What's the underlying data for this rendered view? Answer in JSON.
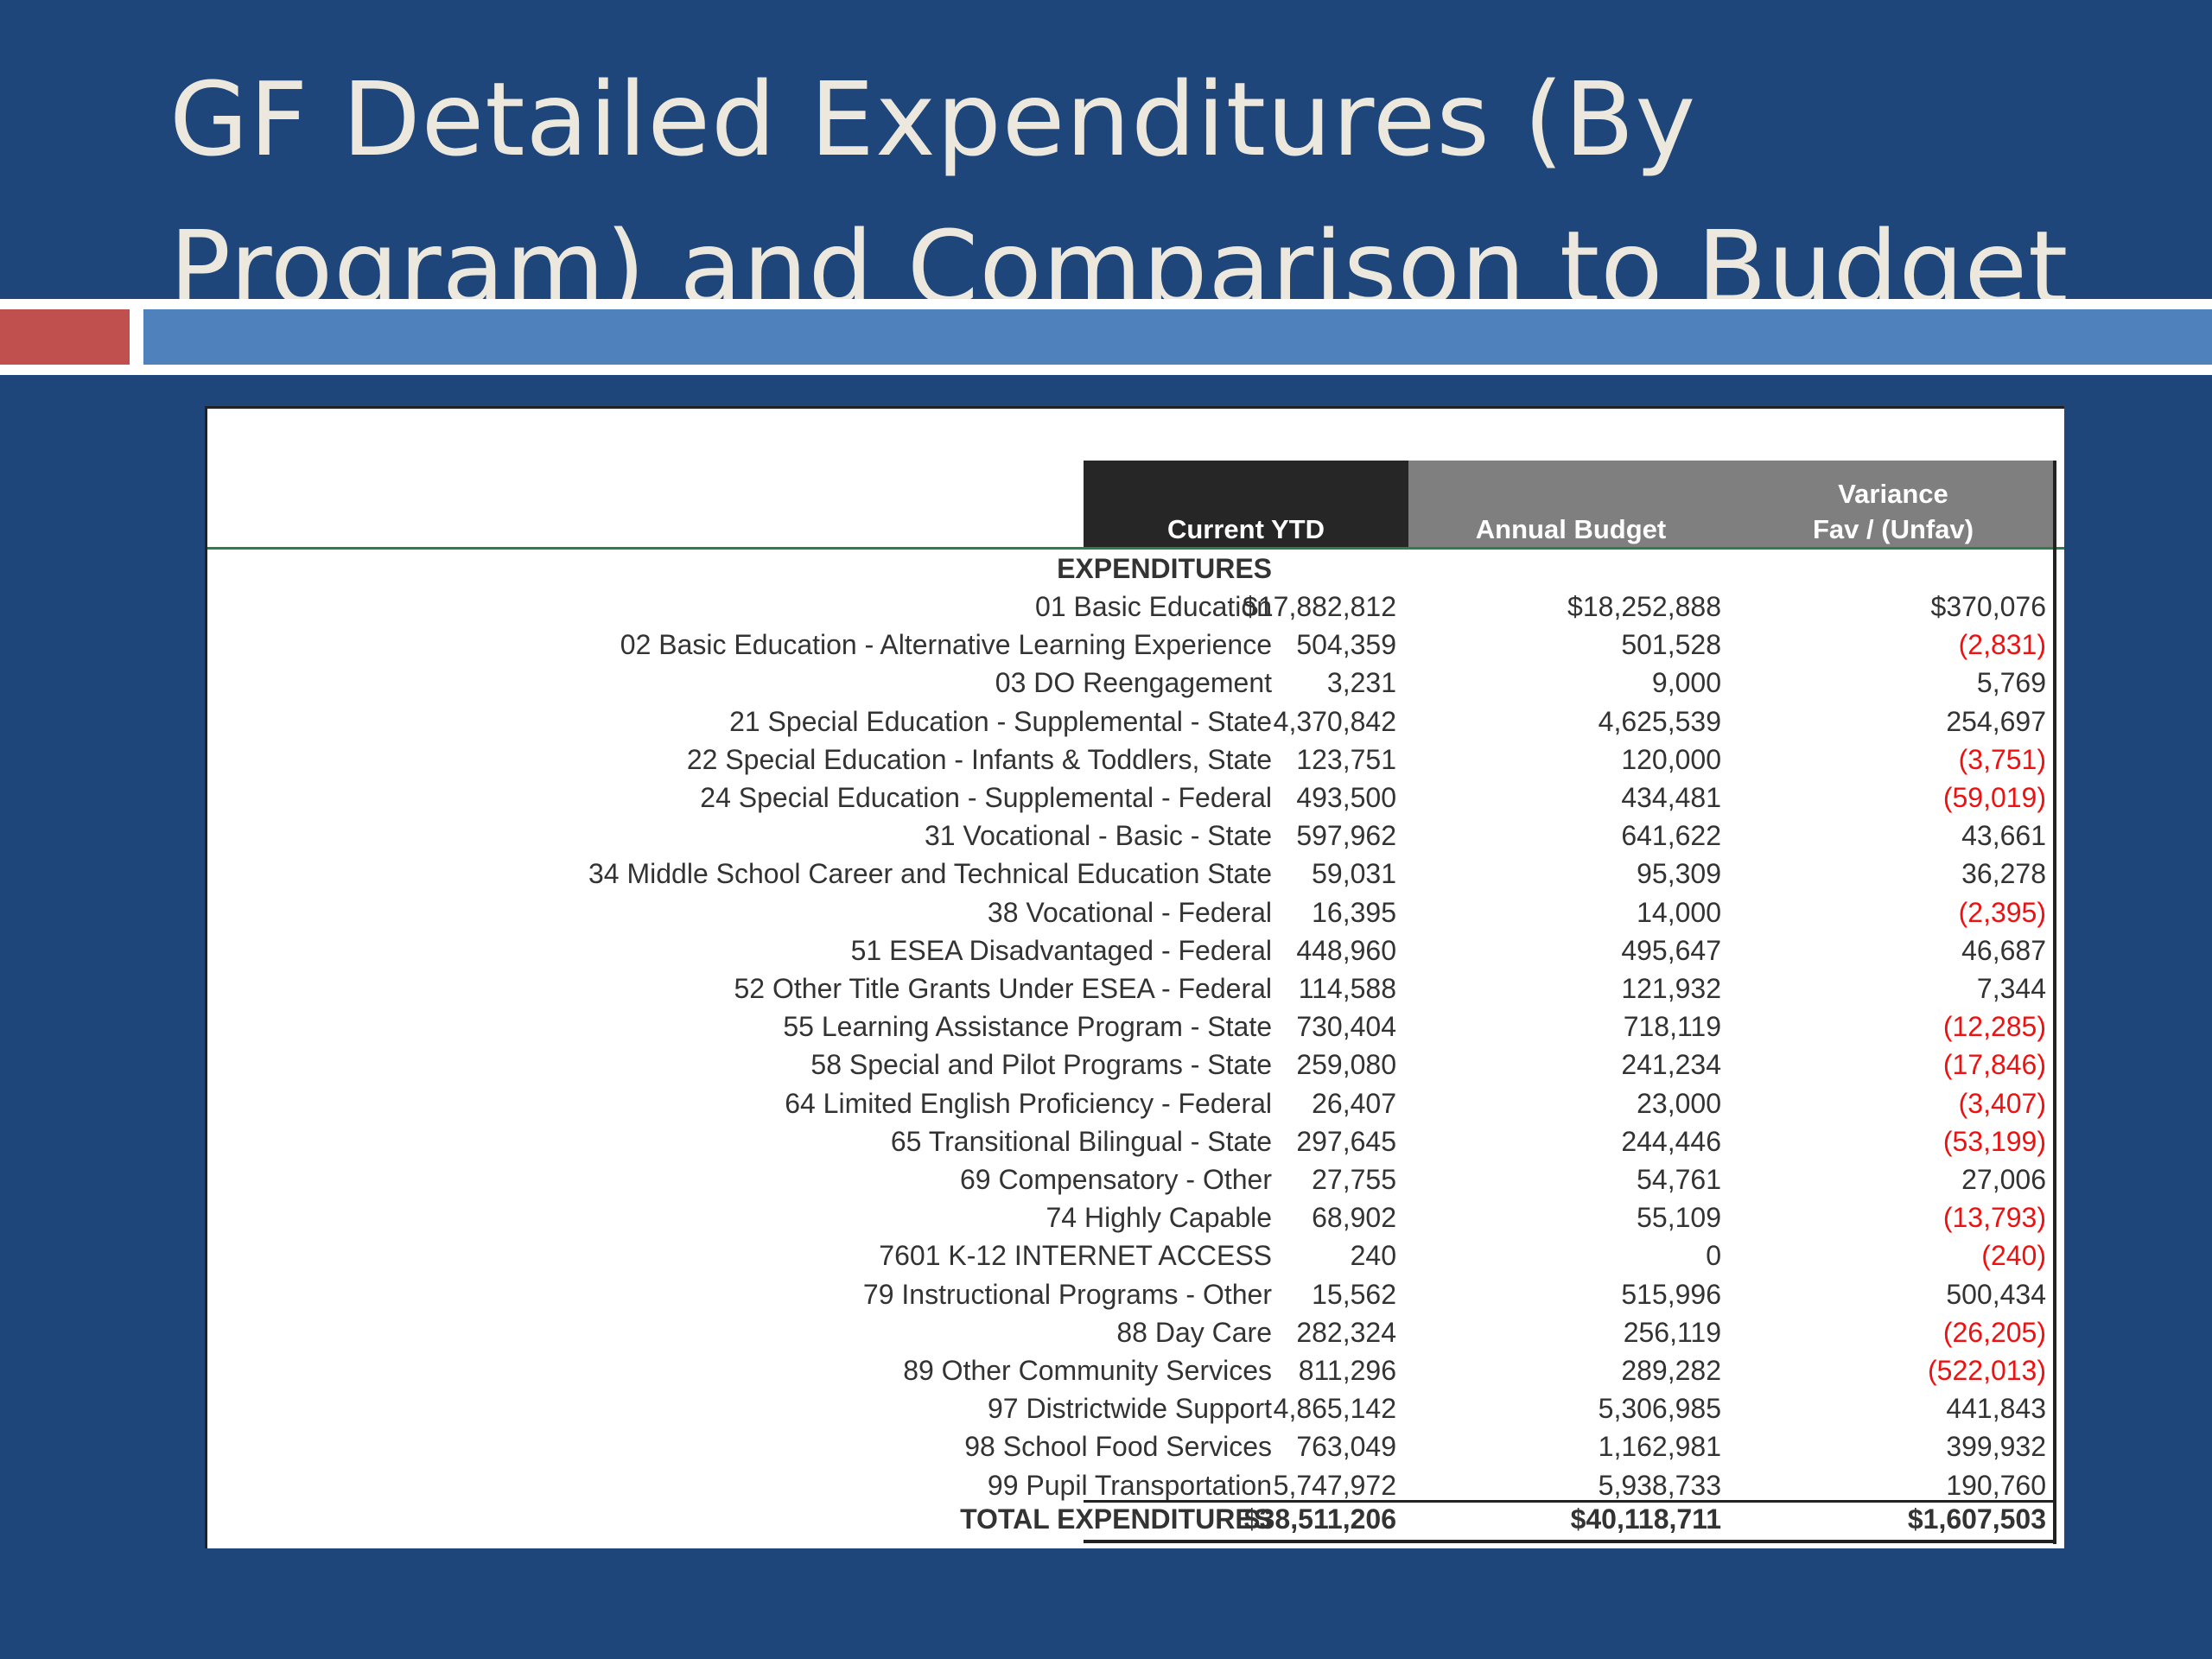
{
  "slide": {
    "title_line1": "GF Detailed Expenditures (By",
    "title_line2": "Program) and Comparison to Budget"
  },
  "colors": {
    "background": "#1f467a",
    "accent_red": "#c0504d",
    "accent_blue": "#4f81bd",
    "negative": "#ee1111"
  },
  "table": {
    "headers": {
      "current_ytd": "Current YTD",
      "annual_budget": "Annual Budget",
      "variance_line1": "Variance",
      "variance_line2": "Fav / (Unfav)"
    },
    "section_label": "EXPENDITURES",
    "rows": [
      {
        "label": "01 Basic Education",
        "ytd": "$17,882,812",
        "budget": "$18,252,888",
        "variance": "$370,076",
        "negative": false
      },
      {
        "label": "02 Basic Education - Alternative Learning Experience",
        "ytd": "504,359",
        "budget": "501,528",
        "variance": "(2,831)",
        "negative": true
      },
      {
        "label": "03 DO Reengagement",
        "ytd": "3,231",
        "budget": "9,000",
        "variance": "5,769",
        "negative": false
      },
      {
        "label": "21 Special Education - Supplemental - State",
        "ytd": "4,370,842",
        "budget": "4,625,539",
        "variance": "254,697",
        "negative": false
      },
      {
        "label": "22 Special Education - Infants & Toddlers, State",
        "ytd": "123,751",
        "budget": "120,000",
        "variance": "(3,751)",
        "negative": true
      },
      {
        "label": "24 Special Education - Supplemental - Federal",
        "ytd": "493,500",
        "budget": "434,481",
        "variance": "(59,019)",
        "negative": true
      },
      {
        "label": "31 Vocational - Basic - State",
        "ytd": "597,962",
        "budget": "641,622",
        "variance": "43,661",
        "negative": false
      },
      {
        "label": "34 Middle School Career and Technical Education State",
        "ytd": "59,031",
        "budget": "95,309",
        "variance": "36,278",
        "negative": false
      },
      {
        "label": "38 Vocational - Federal",
        "ytd": "16,395",
        "budget": "14,000",
        "variance": "(2,395)",
        "negative": true
      },
      {
        "label": "51 ESEA Disadvantaged - Federal",
        "ytd": "448,960",
        "budget": "495,647",
        "variance": "46,687",
        "negative": false
      },
      {
        "label": "52 Other Title Grants Under ESEA - Federal",
        "ytd": "114,588",
        "budget": "121,932",
        "variance": "7,344",
        "negative": false
      },
      {
        "label": "55 Learning Assistance Program - State",
        "ytd": "730,404",
        "budget": "718,119",
        "variance": "(12,285)",
        "negative": true
      },
      {
        "label": "58 Special and Pilot Programs - State",
        "ytd": "259,080",
        "budget": "241,234",
        "variance": "(17,846)",
        "negative": true
      },
      {
        "label": "64 Limited English Proficiency - Federal",
        "ytd": "26,407",
        "budget": "23,000",
        "variance": "(3,407)",
        "negative": true
      },
      {
        "label": "65 Transitional Bilingual - State",
        "ytd": "297,645",
        "budget": "244,446",
        "variance": "(53,199)",
        "negative": true
      },
      {
        "label": "69 Compensatory - Other",
        "ytd": "27,755",
        "budget": "54,761",
        "variance": "27,006",
        "negative": false
      },
      {
        "label": "74 Highly Capable",
        "ytd": "68,902",
        "budget": "55,109",
        "variance": "(13,793)",
        "negative": true
      },
      {
        "label": "7601 K-12 INTERNET ACCESS",
        "ytd": "240",
        "budget": "0",
        "variance": "(240)",
        "negative": true
      },
      {
        "label": "79 Instructional Programs - Other",
        "ytd": "15,562",
        "budget": "515,996",
        "variance": "500,434",
        "negative": false
      },
      {
        "label": "88 Day Care",
        "ytd": "282,324",
        "budget": "256,119",
        "variance": "(26,205)",
        "negative": true
      },
      {
        "label": "89 Other Community Services",
        "ytd": "811,296",
        "budget": "289,282",
        "variance": "(522,013)",
        "negative": true
      },
      {
        "label": "97 Districtwide Support",
        "ytd": "4,865,142",
        "budget": "5,306,985",
        "variance": "441,843",
        "negative": false
      },
      {
        "label": "98 School Food Services",
        "ytd": "763,049",
        "budget": "1,162,981",
        "variance": "399,932",
        "negative": false
      },
      {
        "label": "99 Pupil Transportation",
        "ytd": "5,747,972",
        "budget": "5,938,733",
        "variance": "190,760",
        "negative": false
      }
    ],
    "total": {
      "label": "TOTAL EXPENDITURES",
      "ytd": "$38,511,206",
      "budget": "$40,118,711",
      "variance": "$1,607,503"
    }
  }
}
